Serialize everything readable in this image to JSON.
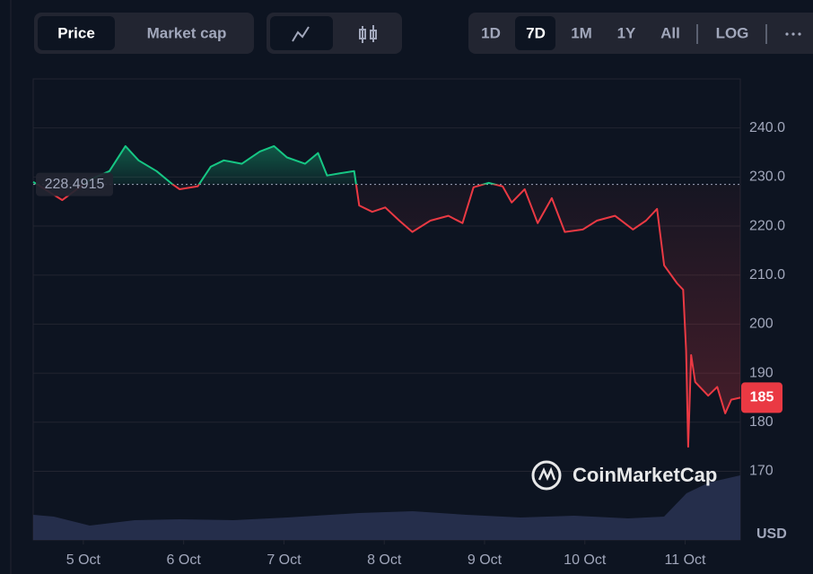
{
  "toolbar": {
    "metric_tabs": [
      "Price",
      "Market cap"
    ],
    "ranges": [
      "1D",
      "7D",
      "1M",
      "1Y",
      "All"
    ],
    "scale_toggle": "LOG"
  },
  "watermark": "CoinMarketCap",
  "chart_data": {
    "type": "line",
    "x": [
      4.5,
      4.79,
      5.06,
      5.26,
      5.42,
      5.55,
      5.73,
      5.89,
      5.96,
      6.14,
      6.27,
      6.4,
      6.58,
      6.76,
      6.9,
      7.03,
      7.21,
      7.34,
      7.43,
      7.57,
      7.7,
      7.75,
      7.88,
      8.01,
      8.15,
      8.28,
      8.46,
      8.64,
      8.78,
      8.89,
      9.04,
      9.18,
      9.27,
      9.4,
      9.53,
      9.67,
      9.8,
      9.98,
      10.12,
      10.3,
      10.48,
      10.61,
      10.72,
      10.79,
      10.92,
      10.98,
      11.01,
      11.03,
      11.06,
      11.1,
      11.23,
      11.32,
      11.4,
      11.46,
      11.55
    ],
    "values": [
      229.0,
      225.3,
      229.4,
      231.2,
      236.3,
      233.4,
      231.2,
      228.5,
      227.5,
      228.1,
      232.1,
      233.4,
      232.7,
      235.2,
      236.3,
      234.0,
      232.7,
      234.9,
      230.3,
      230.8,
      231.2,
      224.2,
      222.9,
      223.8,
      221.1,
      218.8,
      221.1,
      222.1,
      220.6,
      227.9,
      228.8,
      228.1,
      224.8,
      227.5,
      220.6,
      225.7,
      218.8,
      219.3,
      221.1,
      222.1,
      219.3,
      221.1,
      223.5,
      212.0,
      208.3,
      207.0,
      194.6,
      175.0,
      193.7,
      188.2,
      185.4,
      187.2,
      181.8,
      184.6,
      185
    ],
    "baseline": 228.4915,
    "current_price": 185,
    "up_color": "#16c784",
    "down_color": "#ea3943",
    "xlim": [
      4.5,
      11.55
    ],
    "xticks": [
      {
        "value": 5,
        "label": "5 Oct"
      },
      {
        "value": 6,
        "label": "6 Oct"
      },
      {
        "value": 7,
        "label": "7 Oct"
      },
      {
        "value": 8,
        "label": "8 Oct"
      },
      {
        "value": 9,
        "label": "9 Oct"
      },
      {
        "value": 10,
        "label": "10 Oct"
      },
      {
        "value": 11,
        "label": "11 Oct"
      }
    ],
    "ylim": [
      156,
      250
    ],
    "yticks": [
      {
        "value": 240,
        "label": "240.0"
      },
      {
        "value": 230,
        "label": "230.0"
      },
      {
        "value": 220,
        "label": "220.0"
      },
      {
        "value": 210,
        "label": "210.0"
      },
      200,
      190,
      180,
      170
    ],
    "y_unit": "USD",
    "grid": true
  }
}
